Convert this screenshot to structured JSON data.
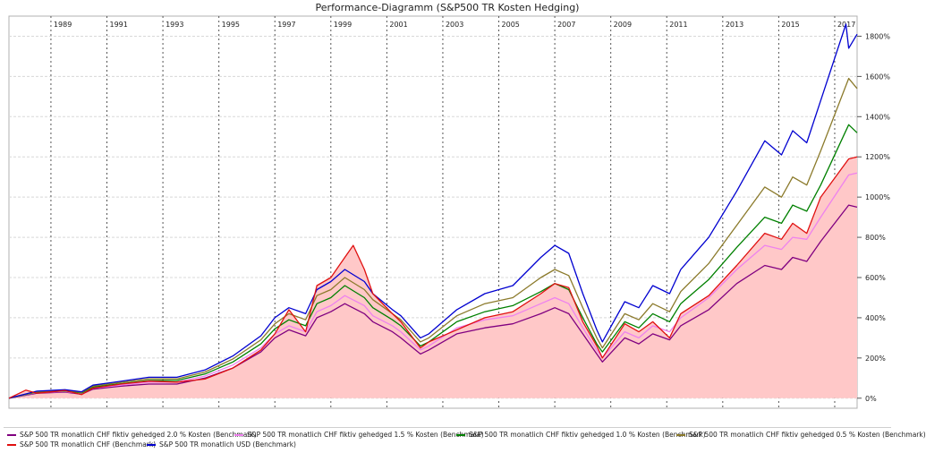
{
  "chart_data": {
    "type": "line",
    "title": "Performance-Diagramm (S&P500 TR Kosten Hedging)",
    "x_ticks": [
      "1989",
      "1991",
      "1993",
      "1995",
      "1997",
      "1999",
      "2001",
      "2003",
      "2005",
      "2007",
      "2009",
      "2011",
      "2013",
      "2015",
      "2017"
    ],
    "y_ticks": [
      "0%",
      "200%",
      "400%",
      "600%",
      "800%",
      "1000%",
      "1200%",
      "1400%",
      "1600%",
      "1800%"
    ],
    "xlim": [
      1988.0,
      2018.3
    ],
    "ylim": [
      -50,
      1900
    ],
    "grid": {
      "vertical": true,
      "horizontal": true
    },
    "legend_position": "bottom",
    "series": [
      {
        "name": "S&P 500 TR monatlich CHF fiktiv gehedged 2.0 % Kosten (Benchmark)",
        "color": "#800080",
        "x": [
          1988.0,
          1989.0,
          1990.0,
          1990.6,
          1991.0,
          1992.0,
          1993.0,
          1994.0,
          1995.0,
          1996.0,
          1997.0,
          1997.5,
          1998.0,
          1998.6,
          1999.0,
          1999.5,
          2000.0,
          2000.7,
          2001.0,
          2001.7,
          2002.0,
          2002.7,
          2003.0,
          2004.0,
          2005.0,
          2006.0,
          2007.0,
          2007.5,
          2008.0,
          2008.5,
          2009.0,
          2009.2,
          2010.0,
          2010.5,
          2011.0,
          2011.6,
          2012.0,
          2013.0,
          2014.0,
          2015.0,
          2015.6,
          2016.0,
          2016.5,
          2017.0,
          2018.0,
          2018.3
        ],
        "y": [
          0,
          25,
          30,
          20,
          45,
          60,
          70,
          70,
          100,
          150,
          230,
          300,
          340,
          310,
          400,
          430,
          470,
          420,
          380,
          330,
          300,
          220,
          240,
          320,
          350,
          370,
          420,
          450,
          420,
          320,
          220,
          180,
          300,
          270,
          320,
          290,
          360,
          440,
          570,
          660,
          640,
          700,
          680,
          780,
          960,
          950
        ]
      },
      {
        "name": "S&P 500 TR monatlich CHF fiktiv gehedged 1.5 % Kosten (Benchmark)",
        "color": "#ee82ee",
        "x": [
          1988.0,
          1989.0,
          1990.0,
          1990.6,
          1991.0,
          1992.0,
          1993.0,
          1994.0,
          1995.0,
          1996.0,
          1997.0,
          1997.5,
          1998.0,
          1998.6,
          1999.0,
          1999.5,
          2000.0,
          2000.7,
          2001.0,
          2001.7,
          2002.0,
          2002.7,
          2003.0,
          2004.0,
          2005.0,
          2006.0,
          2007.0,
          2007.5,
          2008.0,
          2008.5,
          2009.0,
          2009.2,
          2010.0,
          2010.5,
          2011.0,
          2011.6,
          2012.0,
          2013.0,
          2014.0,
          2015.0,
          2015.6,
          2016.0,
          2016.5,
          2017.0,
          2018.0,
          2018.3
        ],
        "y": [
          0,
          28,
          33,
          23,
          50,
          65,
          80,
          80,
          110,
          165,
          250,
          320,
          360,
          330,
          430,
          460,
          510,
          460,
          410,
          360,
          330,
          240,
          260,
          350,
          390,
          410,
          470,
          500,
          470,
          350,
          240,
          200,
          330,
          300,
          360,
          330,
          400,
          500,
          640,
          760,
          740,
          800,
          790,
          900,
          1110,
          1120
        ]
      },
      {
        "name": "S&P 500 TR monatlich CHF fiktiv gehedged 1.0 % Kosten (Benchmark)",
        "color": "#008000",
        "x": [
          1988.0,
          1989.0,
          1990.0,
          1990.6,
          1991.0,
          1992.0,
          1993.0,
          1994.0,
          1995.0,
          1996.0,
          1997.0,
          1997.5,
          1998.0,
          1998.6,
          1999.0,
          1999.5,
          2000.0,
          2000.7,
          2001.0,
          2001.7,
          2002.0,
          2002.7,
          2003.0,
          2004.0,
          2005.0,
          2006.0,
          2007.0,
          2007.5,
          2008.0,
          2008.5,
          2009.0,
          2009.2,
          2010.0,
          2010.5,
          2011.0,
          2011.6,
          2012.0,
          2013.0,
          2014.0,
          2015.0,
          2015.6,
          2016.0,
          2016.5,
          2017.0,
          2018.0,
          2018.3
        ],
        "y": [
          0,
          30,
          36,
          26,
          55,
          72,
          88,
          88,
          120,
          180,
          270,
          345,
          390,
          360,
          470,
          500,
          560,
          500,
          450,
          390,
          360,
          260,
          280,
          380,
          430,
          460,
          530,
          570,
          540,
          400,
          270,
          230,
          380,
          350,
          420,
          380,
          470,
          590,
          750,
          900,
          870,
          960,
          930,
          1060,
          1360,
          1320
        ]
      },
      {
        "name": "S&P 500 TR monatlich CHF fiktiv gehedged 0.5 % Kosten (Benchmark)",
        "color": "#8b7a2b",
        "x": [
          1988.0,
          1989.0,
          1990.0,
          1990.6,
          1991.0,
          1992.0,
          1993.0,
          1994.0,
          1995.0,
          1996.0,
          1997.0,
          1997.5,
          1998.0,
          1998.6,
          1999.0,
          1999.5,
          2000.0,
          2000.7,
          2001.0,
          2001.7,
          2002.0,
          2002.7,
          2003.0,
          2004.0,
          2005.0,
          2006.0,
          2007.0,
          2007.5,
          2008.0,
          2008.5,
          2009.0,
          2009.2,
          2010.0,
          2010.5,
          2011.0,
          2011.6,
          2012.0,
          2013.0,
          2014.0,
          2015.0,
          2015.6,
          2016.0,
          2016.5,
          2017.0,
          2018.0,
          2018.3
        ],
        "y": [
          0,
          32,
          39,
          29,
          60,
          78,
          96,
          96,
          130,
          195,
          290,
          370,
          420,
          390,
          510,
          540,
          600,
          540,
          490,
          420,
          390,
          280,
          300,
          410,
          470,
          500,
          600,
          640,
          610,
          450,
          300,
          250,
          420,
          390,
          470,
          430,
          530,
          670,
          860,
          1050,
          1000,
          1100,
          1060,
          1230,
          1590,
          1540
        ]
      },
      {
        "name": "S&P 500 TR monatlich CHF (Benchmark)",
        "color": "#e01010",
        "fill": "#ffc8c8",
        "x": [
          1988.0,
          1988.6,
          1989.0,
          1990.0,
          1990.6,
          1991.0,
          1992.0,
          1993.0,
          1994.0,
          1995.0,
          1996.0,
          1997.0,
          1997.5,
          1998.0,
          1998.6,
          1999.0,
          1999.5,
          2000.0,
          2000.3,
          2000.7,
          2001.0,
          2001.7,
          2002.0,
          2002.7,
          2003.0,
          2004.0,
          2005.0,
          2006.0,
          2007.0,
          2007.5,
          2008.0,
          2008.5,
          2009.0,
          2009.2,
          2010.0,
          2010.5,
          2011.0,
          2011.6,
          2012.0,
          2013.0,
          2014.0,
          2015.0,
          2015.6,
          2016.0,
          2016.5,
          2017.0,
          2018.0,
          2018.3
        ],
        "y": [
          0,
          40,
          25,
          38,
          18,
          50,
          70,
          85,
          80,
          95,
          150,
          240,
          320,
          440,
          330,
          560,
          600,
          700,
          760,
          640,
          520,
          420,
          380,
          250,
          280,
          340,
          400,
          430,
          520,
          570,
          550,
          380,
          260,
          200,
          370,
          330,
          380,
          300,
          420,
          510,
          660,
          820,
          790,
          870,
          820,
          1000,
          1190,
          1200
        ]
      },
      {
        "name": "S&P 500 TR monatlich USD (Benchmark)",
        "color": "#0000d0",
        "x": [
          1988.0,
          1989.0,
          1990.0,
          1990.6,
          1991.0,
          1992.0,
          1993.0,
          1994.0,
          1995.0,
          1996.0,
          1997.0,
          1997.5,
          1998.0,
          1998.6,
          1999.0,
          1999.5,
          2000.0,
          2000.7,
          2001.0,
          2001.7,
          2002.0,
          2002.7,
          2003.0,
          2004.0,
          2005.0,
          2006.0,
          2007.0,
          2007.5,
          2008.0,
          2008.5,
          2009.0,
          2009.2,
          2010.0,
          2010.5,
          2011.0,
          2011.6,
          2012.0,
          2013.0,
          2014.0,
          2015.0,
          2015.6,
          2016.0,
          2016.5,
          2017.0,
          2017.9,
          2018.0,
          2018.3
        ],
        "y": [
          0,
          35,
          42,
          32,
          65,
          84,
          104,
          104,
          140,
          210,
          310,
          400,
          450,
          420,
          540,
          580,
          640,
          580,
          520,
          440,
          410,
          300,
          320,
          440,
          520,
          560,
          700,
          760,
          720,
          520,
          340,
          280,
          480,
          450,
          560,
          520,
          640,
          800,
          1030,
          1280,
          1210,
          1330,
          1270,
          1480,
          1860,
          1740,
          1810
        ]
      }
    ]
  }
}
